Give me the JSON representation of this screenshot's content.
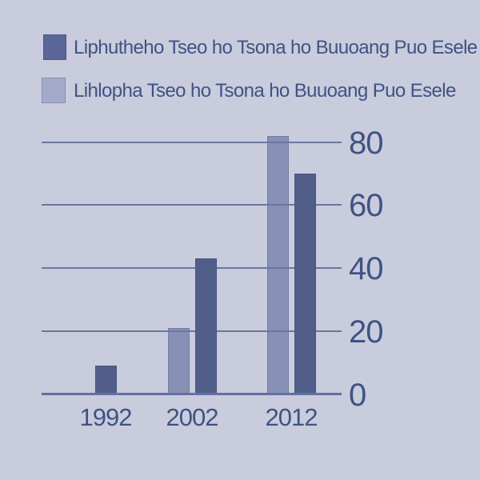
{
  "background_color": "#C9CCDC",
  "text_color": "#3F5384",
  "grid_color": "#6B76A2",
  "axis_color": "#656FA0",
  "chart_data": {
    "type": "bar",
    "title": "",
    "categories": [
      "1992",
      "2002",
      "2012"
    ],
    "series": [
      {
        "name": "Liphutheho Tseo ho Tsona ho Buuoang Puo Esele",
        "values": [
          9,
          43,
          70
        ],
        "bar_color": "#525E8A",
        "legend_color": "#5A6697"
      },
      {
        "name": "Lihlopha Tseo ho Tsona ho Buuoang Puo Esele",
        "values": [
          null,
          21,
          82
        ],
        "bar_color": "#8791B5",
        "legend_color": "#A4ABC9"
      }
    ],
    "y_ticks": [
      0,
      20,
      40,
      60,
      80
    ],
    "ylim": [
      0,
      85
    ],
    "yaxis_side": "right",
    "grid": true,
    "legend_position": "top-left"
  }
}
